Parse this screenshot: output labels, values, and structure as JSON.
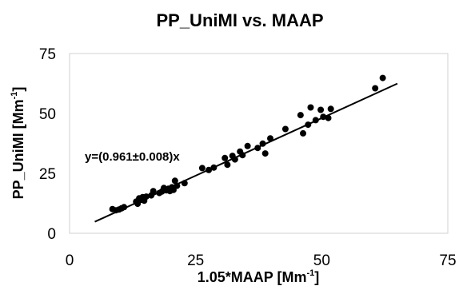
{
  "chart_data": {
    "type": "scatter",
    "title": "PP_UniMI vs. MAAP",
    "xlabel": "1.05*MAAP [Mm",
    "xlabel_sup": "-1",
    "xlabel_end": "]",
    "ylabel": "PP_UniMI [Mm",
    "ylabel_sup": "-1",
    "ylabel_end": "]",
    "xlim": [
      0,
      75
    ],
    "ylim": [
      0,
      75
    ],
    "xticks": [
      "0",
      "25",
      "50",
      "75"
    ],
    "yticks": [
      "0",
      "25",
      "50",
      "75"
    ],
    "grid": false,
    "annotation": "y=(0.961±0.008)x",
    "fit_line": {
      "slope": 0.961,
      "x_start": 5,
      "x_end": 65
    },
    "series": [
      {
        "x": [
          8.5,
          9.2,
          9.8,
          10.3,
          10.8,
          13.2,
          13.5,
          13.8,
          14.1,
          14.5,
          14.8,
          15.2,
          16.2,
          16.6,
          17.8,
          18.3,
          18.7,
          19.2,
          19.6,
          19.9,
          20.3,
          20.6,
          20.9,
          21.3,
          22.8,
          26.3,
          27.6,
          28.6,
          30.8,
          31.3,
          32.3,
          32.8,
          33.8,
          34.3,
          35.3,
          37.3,
          38.3,
          38.8,
          39.8,
          42.8,
          45.8,
          46.3,
          47.3,
          47.8,
          48.8,
          49.8,
          50.3,
          51.3,
          51.8,
          60.6,
          62.1
        ],
        "y": [
          10.1,
          9.6,
          9.9,
          10.4,
          10.9,
          13.2,
          12.3,
          14.6,
          13.9,
          15.1,
          13.6,
          15.3,
          15.8,
          17.6,
          16.8,
          17.4,
          18.9,
          17.9,
          18.6,
          17.6,
          19.2,
          18.1,
          21.9,
          19.8,
          20.9,
          27.2,
          26.4,
          27.4,
          31.4,
          28.6,
          32.3,
          30.8,
          34.1,
          32.6,
          36.4,
          35.6,
          37.4,
          33.3,
          39.6,
          43.5,
          49.3,
          41.7,
          45.3,
          52.5,
          47.2,
          51.5,
          48.6,
          48.1,
          51.9,
          60.5,
          64.8
        ]
      }
    ]
  }
}
